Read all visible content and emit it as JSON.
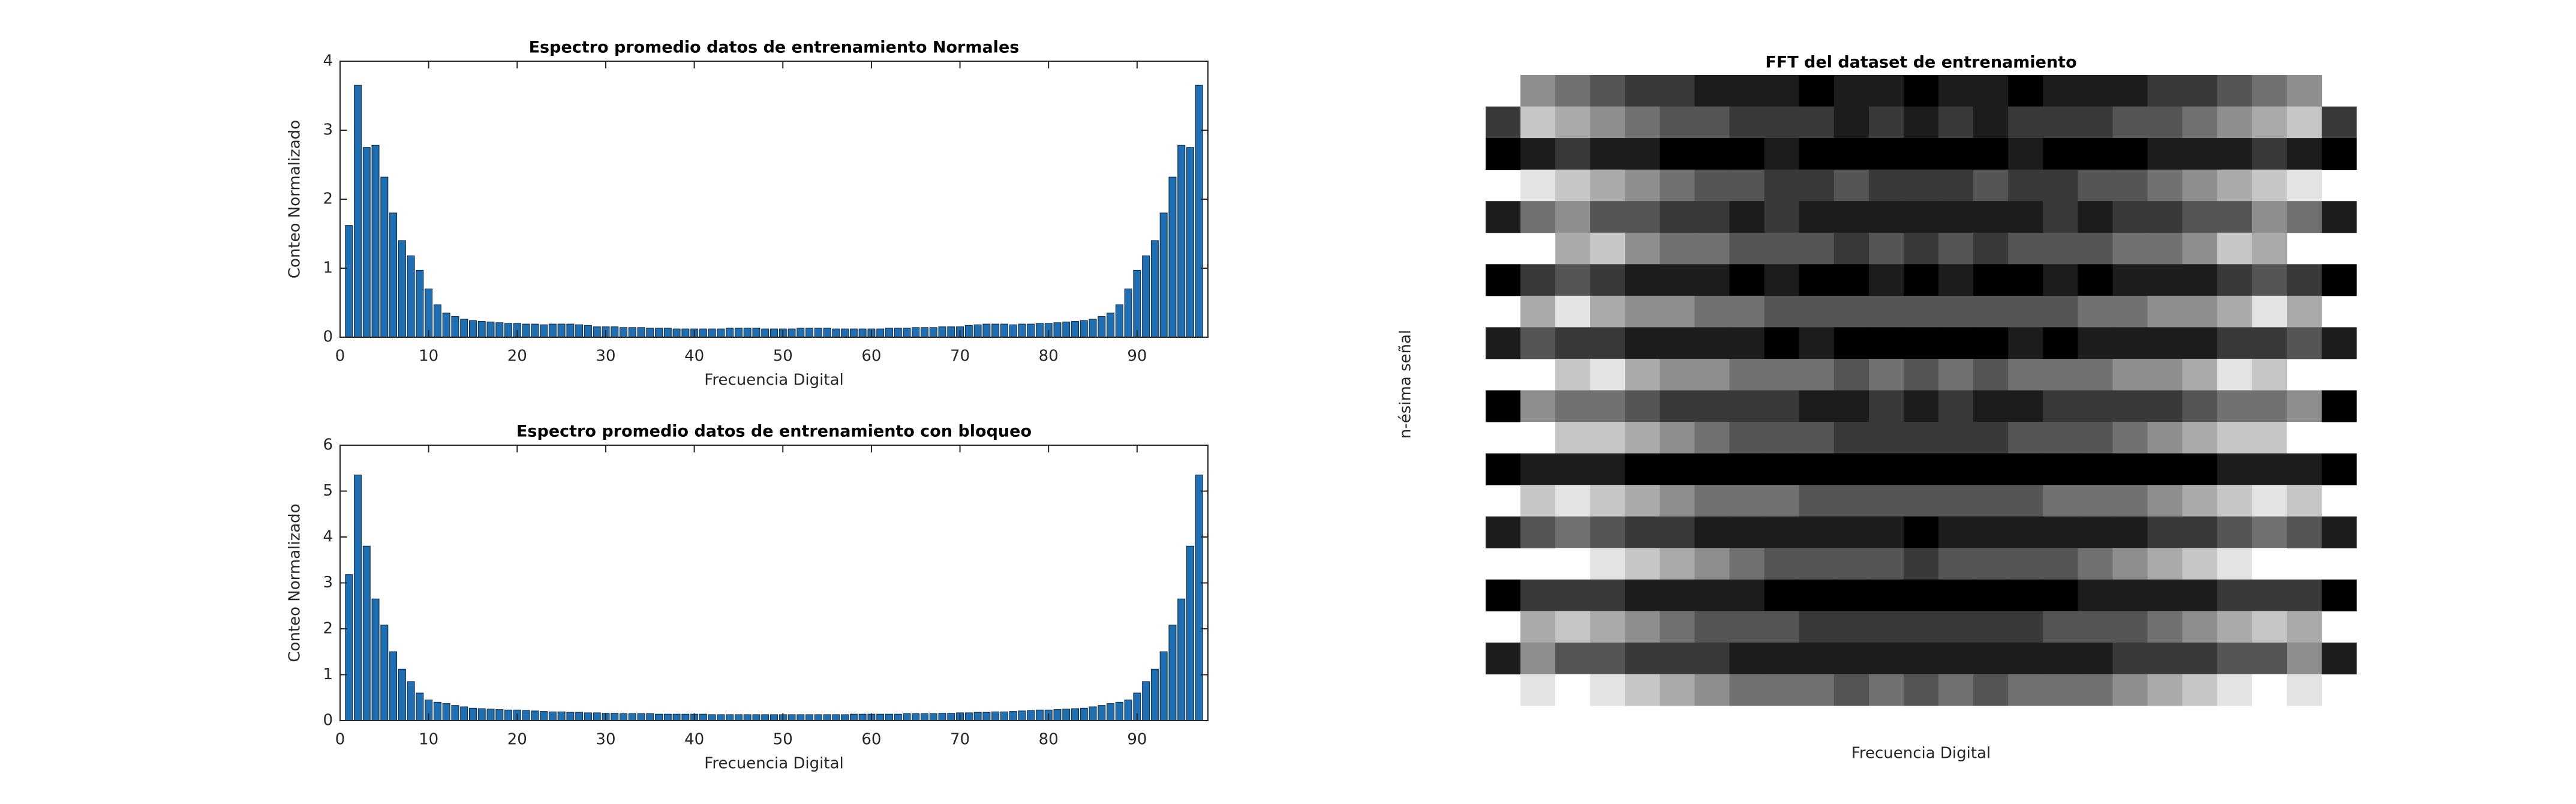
{
  "chart_data": [
    {
      "type": "bar",
      "title": "Espectro promedio datos de entrenamiento Normales",
      "xlabel": "Frecuencia Digital",
      "ylabel": "Conteo Normalizado",
      "x": [
        1,
        2,
        3,
        4,
        5,
        6,
        7,
        8,
        9,
        10,
        11,
        12,
        13,
        14,
        15,
        16,
        17,
        18,
        19,
        20,
        21,
        22,
        23,
        24,
        25,
        26,
        27,
        28,
        29,
        30,
        31,
        32,
        33,
        34,
        35,
        36,
        37,
        38,
        39,
        40,
        41,
        42,
        43,
        44,
        45,
        46,
        47,
        48,
        49,
        50,
        51,
        52,
        53,
        54,
        55,
        56,
        57,
        58,
        59,
        60,
        61,
        62,
        63,
        64,
        65,
        66,
        67,
        68,
        69,
        70,
        71,
        72,
        73,
        74,
        75,
        76,
        77,
        78,
        79,
        80,
        81,
        82,
        83,
        84,
        85,
        86,
        87,
        88,
        89,
        90,
        91,
        92,
        93,
        94,
        95,
        96,
        97
      ],
      "values": [
        1.62,
        3.65,
        2.75,
        2.78,
        2.32,
        1.8,
        1.4,
        1.18,
        0.97,
        0.7,
        0.47,
        0.35,
        0.3,
        0.26,
        0.24,
        0.23,
        0.22,
        0.21,
        0.2,
        0.2,
        0.19,
        0.19,
        0.18,
        0.19,
        0.19,
        0.19,
        0.18,
        0.17,
        0.15,
        0.15,
        0.15,
        0.14,
        0.14,
        0.14,
        0.13,
        0.13,
        0.13,
        0.12,
        0.12,
        0.12,
        0.12,
        0.12,
        0.12,
        0.13,
        0.13,
        0.13,
        0.13,
        0.12,
        0.12,
        0.12,
        0.12,
        0.13,
        0.13,
        0.13,
        0.13,
        0.12,
        0.12,
        0.12,
        0.12,
        0.12,
        0.12,
        0.13,
        0.13,
        0.13,
        0.14,
        0.14,
        0.14,
        0.15,
        0.15,
        0.15,
        0.17,
        0.18,
        0.19,
        0.19,
        0.19,
        0.18,
        0.19,
        0.19,
        0.2,
        0.2,
        0.21,
        0.22,
        0.23,
        0.24,
        0.26,
        0.3,
        0.35,
        0.47,
        0.7,
        0.97,
        1.18,
        1.4,
        1.8,
        2.32,
        2.78,
        2.75,
        3.65
      ],
      "color": "#1f6fb5",
      "xlim": [
        0,
        98
      ],
      "xticks": [
        0,
        10,
        20,
        30,
        40,
        50,
        60,
        70,
        80,
        90
      ],
      "ylim": [
        0,
        4
      ],
      "yticks": [
        0,
        1,
        2,
        3,
        4
      ]
    },
    {
      "type": "bar",
      "title": "Espectro promedio datos de entrenamiento con bloqueo",
      "xlabel": "Frecuencia Digital",
      "ylabel": "Conteo Normalizado",
      "x": [
        1,
        2,
        3,
        4,
        5,
        6,
        7,
        8,
        9,
        10,
        11,
        12,
        13,
        14,
        15,
        16,
        17,
        18,
        19,
        20,
        21,
        22,
        23,
        24,
        25,
        26,
        27,
        28,
        29,
        30,
        31,
        32,
        33,
        34,
        35,
        36,
        37,
        38,
        39,
        40,
        41,
        42,
        43,
        44,
        45,
        46,
        47,
        48,
        49,
        50,
        51,
        52,
        53,
        54,
        55,
        56,
        57,
        58,
        59,
        60,
        61,
        62,
        63,
        64,
        65,
        66,
        67,
        68,
        69,
        70,
        71,
        72,
        73,
        74,
        75,
        76,
        77,
        78,
        79,
        80,
        81,
        82,
        83,
        84,
        85,
        86,
        87,
        88,
        89,
        90,
        91,
        92,
        93,
        94,
        95,
        96,
        97
      ],
      "values": [
        3.18,
        5.35,
        3.8,
        2.65,
        2.08,
        1.5,
        1.12,
        0.85,
        0.6,
        0.45,
        0.4,
        0.37,
        0.33,
        0.3,
        0.27,
        0.26,
        0.25,
        0.24,
        0.23,
        0.23,
        0.22,
        0.21,
        0.2,
        0.19,
        0.19,
        0.18,
        0.18,
        0.17,
        0.17,
        0.16,
        0.16,
        0.15,
        0.15,
        0.15,
        0.15,
        0.14,
        0.14,
        0.14,
        0.14,
        0.14,
        0.14,
        0.13,
        0.13,
        0.13,
        0.13,
        0.13,
        0.13,
        0.13,
        0.13,
        0.13,
        0.13,
        0.13,
        0.13,
        0.13,
        0.13,
        0.13,
        0.13,
        0.14,
        0.14,
        0.14,
        0.14,
        0.14,
        0.14,
        0.15,
        0.15,
        0.15,
        0.15,
        0.16,
        0.16,
        0.17,
        0.17,
        0.18,
        0.18,
        0.19,
        0.19,
        0.2,
        0.21,
        0.22,
        0.23,
        0.23,
        0.24,
        0.25,
        0.26,
        0.27,
        0.3,
        0.33,
        0.37,
        0.4,
        0.45,
        0.6,
        0.85,
        1.12,
        1.5,
        2.08,
        2.65,
        3.8,
        5.35
      ],
      "color": "#1f6fb5",
      "xlim": [
        0,
        98
      ],
      "xticks": [
        0,
        10,
        20,
        30,
        40,
        50,
        60,
        70,
        80,
        90
      ],
      "ylim": [
        0,
        6
      ],
      "yticks": [
        0,
        1,
        2,
        3,
        4,
        5,
        6
      ]
    },
    {
      "type": "heatmap",
      "title": "FFT del dataset de entrenamiento",
      "xlabel": "Frecuencia Digital",
      "ylabel": "n-ésima señal",
      "colormap": "gray",
      "zlim": [
        0,
        9
      ],
      "z": [
        [
          null,
          5,
          4,
          3,
          2,
          2,
          1,
          1,
          1,
          0,
          1,
          1,
          0,
          1,
          1,
          0,
          1,
          1,
          1,
          2,
          2,
          3,
          4,
          5,
          null
        ],
        [
          2,
          7,
          6,
          5,
          4,
          3,
          3,
          2,
          2,
          2,
          1,
          2,
          1,
          2,
          1,
          2,
          2,
          2,
          3,
          3,
          4,
          5,
          6,
          7,
          2
        ],
        [
          0,
          1,
          2,
          1,
          1,
          0,
          0,
          0,
          1,
          0,
          0,
          0,
          0,
          0,
          0,
          1,
          0,
          0,
          0,
          1,
          1,
          1,
          2,
          1,
          0
        ],
        [
          null,
          8,
          7,
          6,
          5,
          4,
          3,
          3,
          2,
          2,
          3,
          2,
          2,
          2,
          3,
          2,
          2,
          3,
          3,
          4,
          5,
          6,
          7,
          8,
          null
        ],
        [
          1,
          4,
          5,
          3,
          3,
          2,
          2,
          1,
          2,
          1,
          1,
          1,
          1,
          1,
          1,
          1,
          2,
          1,
          2,
          2,
          3,
          3,
          5,
          4,
          1
        ],
        [
          null,
          null,
          6,
          7,
          5,
          4,
          4,
          3,
          3,
          3,
          2,
          3,
          2,
          3,
          2,
          3,
          3,
          3,
          4,
          4,
          5,
          7,
          6,
          null,
          null
        ],
        [
          0,
          2,
          3,
          2,
          1,
          1,
          1,
          0,
          1,
          0,
          0,
          1,
          0,
          1,
          0,
          0,
          1,
          0,
          1,
          1,
          1,
          2,
          3,
          2,
          0
        ],
        [
          null,
          6,
          8,
          6,
          5,
          5,
          4,
          4,
          3,
          3,
          3,
          3,
          3,
          3,
          3,
          3,
          3,
          4,
          4,
          5,
          5,
          6,
          8,
          6,
          null
        ],
        [
          1,
          3,
          2,
          2,
          1,
          1,
          1,
          1,
          0,
          1,
          0,
          0,
          0,
          0,
          0,
          1,
          0,
          1,
          1,
          1,
          1,
          2,
          2,
          3,
          1
        ],
        [
          null,
          null,
          7,
          8,
          6,
          5,
          5,
          4,
          4,
          4,
          3,
          4,
          3,
          4,
          3,
          4,
          4,
          4,
          5,
          5,
          6,
          8,
          7,
          null,
          null
        ],
        [
          0,
          5,
          4,
          4,
          3,
          2,
          2,
          2,
          2,
          1,
          1,
          2,
          1,
          2,
          1,
          1,
          2,
          2,
          2,
          2,
          3,
          4,
          4,
          5,
          0
        ],
        [
          null,
          9,
          7,
          7,
          6,
          5,
          4,
          3,
          3,
          3,
          2,
          2,
          2,
          2,
          2,
          3,
          3,
          3,
          4,
          5,
          6,
          7,
          7,
          9,
          null
        ],
        [
          0,
          1,
          1,
          1,
          0,
          0,
          0,
          0,
          0,
          0,
          0,
          0,
          0,
          0,
          0,
          0,
          0,
          0,
          0,
          0,
          0,
          1,
          1,
          1,
          0
        ],
        [
          null,
          7,
          8,
          7,
          6,
          5,
          4,
          4,
          4,
          3,
          3,
          3,
          3,
          3,
          3,
          3,
          4,
          4,
          4,
          5,
          6,
          7,
          8,
          7,
          null
        ],
        [
          1,
          3,
          4,
          3,
          2,
          2,
          1,
          1,
          1,
          1,
          1,
          1,
          0,
          1,
          1,
          1,
          1,
          1,
          1,
          2,
          2,
          3,
          4,
          3,
          1
        ],
        [
          null,
          null,
          9,
          8,
          7,
          6,
          5,
          4,
          3,
          3,
          3,
          3,
          2,
          3,
          3,
          3,
          3,
          4,
          5,
          6,
          7,
          8,
          9,
          null,
          null
        ],
        [
          0,
          2,
          2,
          2,
          1,
          1,
          1,
          1,
          0,
          0,
          0,
          0,
          0,
          0,
          0,
          0,
          0,
          1,
          1,
          1,
          1,
          2,
          2,
          2,
          0
        ],
        [
          null,
          6,
          7,
          6,
          5,
          4,
          3,
          3,
          3,
          2,
          2,
          2,
          2,
          2,
          2,
          2,
          3,
          3,
          3,
          4,
          5,
          6,
          7,
          6,
          null
        ],
        [
          1,
          5,
          3,
          3,
          2,
          2,
          2,
          1,
          1,
          1,
          1,
          1,
          1,
          1,
          1,
          1,
          1,
          1,
          2,
          2,
          2,
          3,
          3,
          5,
          1
        ],
        [
          null,
          8,
          9,
          8,
          7,
          6,
          5,
          4,
          4,
          4,
          3,
          4,
          3,
          4,
          3,
          4,
          4,
          4,
          5,
          6,
          7,
          8,
          9,
          8,
          null
        ]
      ]
    }
  ]
}
